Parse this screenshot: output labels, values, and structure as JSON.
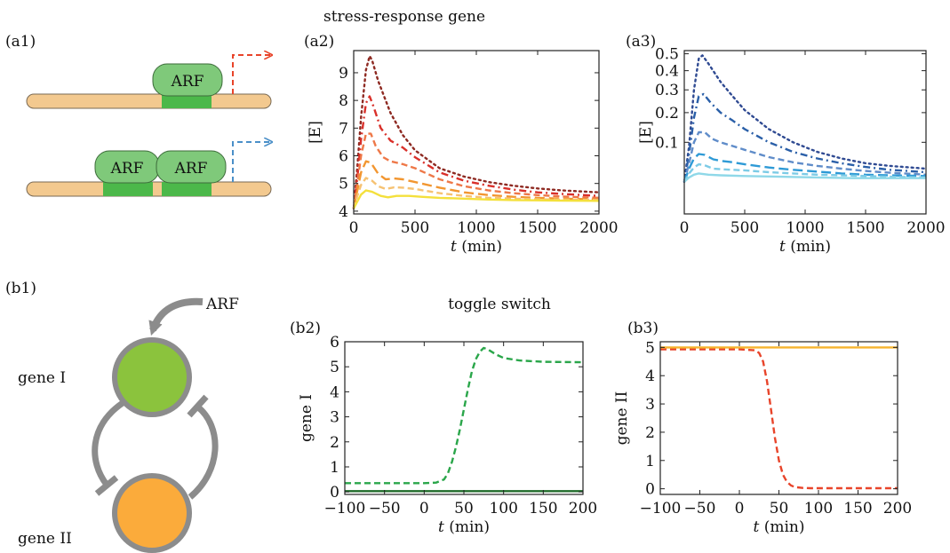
{
  "headings": {
    "top": "stress-response gene",
    "middle": "toggle switch"
  },
  "panel_labels": {
    "a1": "(a1)",
    "a2": "(a2)",
    "a3": "(a3)",
    "b1": "(b1)",
    "b2": "(b2)",
    "b3": "(b3)"
  },
  "diagram_a1": {
    "arf_label": "ARF",
    "single_arrow_color": "#e8442a",
    "double_arrow_color": "#4a8fc8",
    "dna_color": "#f3c98f",
    "site_color": "#4cb84a",
    "protein_color": "#7fc97a"
  },
  "diagram_b1": {
    "arf_label": "ARF",
    "gene1_label": "gene I",
    "gene2_label": "gene II",
    "gene1_color": "#8bc33d",
    "gene2_color": "#fbab3b",
    "ring_color": "#8c8c8c"
  },
  "chart_data": [
    {
      "id": "a2",
      "type": "line",
      "xlabel_italic": "t",
      "xlabel_unit": " (min)",
      "ylabel": "[E]",
      "xlim": [
        0,
        2000
      ],
      "ylim": [
        3.9,
        9.8
      ],
      "xticks": [
        0,
        500,
        1000,
        1500,
        2000
      ],
      "yticks": [
        4,
        5,
        6,
        7,
        8,
        9
      ],
      "series": [
        {
          "color": "#8e2a22",
          "dash": "dotted",
          "x": [
            0,
            30,
            60,
            100,
            130,
            150,
            200,
            300,
            400,
            500,
            700,
            900,
            1100,
            1300,
            1500,
            1700,
            2000
          ],
          "y": [
            4.1,
            5.6,
            7.4,
            9.1,
            9.6,
            9.45,
            8.7,
            7.55,
            6.75,
            6.2,
            5.55,
            5.25,
            5.05,
            4.92,
            4.82,
            4.75,
            4.68
          ]
        },
        {
          "color": "#d9302a",
          "dash": "dashdot",
          "x": [
            0,
            30,
            60,
            100,
            130,
            160,
            220,
            300,
            400,
            500,
            700,
            900,
            1100,
            1300,
            1500,
            1700,
            2000
          ],
          "y": [
            4.1,
            5.2,
            6.6,
            7.9,
            8.15,
            7.8,
            7.0,
            6.55,
            6.3,
            5.95,
            5.4,
            5.1,
            4.92,
            4.78,
            4.68,
            4.62,
            4.55
          ]
        },
        {
          "color": "#ee7848",
          "dash": "dashed",
          "x": [
            0,
            30,
            60,
            100,
            140,
            180,
            240,
            300,
            400,
            500,
            700,
            900,
            1100,
            1300,
            1500,
            1700,
            2000
          ],
          "y": [
            4.1,
            5.0,
            6.0,
            6.8,
            6.8,
            6.35,
            5.95,
            5.8,
            5.7,
            5.55,
            5.15,
            4.9,
            4.75,
            4.65,
            4.58,
            4.53,
            4.48
          ]
        },
        {
          "color": "#f29630",
          "dash": "longdash",
          "x": [
            0,
            30,
            60,
            100,
            140,
            200,
            260,
            330,
            400,
            500,
            700,
            900,
            1100,
            1300,
            1500,
            1700,
            2000
          ],
          "y": [
            4.1,
            4.75,
            5.4,
            5.8,
            5.75,
            5.35,
            5.15,
            5.18,
            5.15,
            5.05,
            4.85,
            4.68,
            4.58,
            4.52,
            4.48,
            4.45,
            4.42
          ]
        },
        {
          "color": "#f6c272",
          "dash": "dashed",
          "x": [
            0,
            30,
            60,
            100,
            150,
            200,
            260,
            330,
            400,
            500,
            700,
            900,
            1100,
            1300,
            1500,
            1700,
            2000
          ],
          "y": [
            4.1,
            4.55,
            4.95,
            5.2,
            5.1,
            4.9,
            4.8,
            4.86,
            4.85,
            4.8,
            4.65,
            4.55,
            4.48,
            4.45,
            4.43,
            4.42,
            4.4
          ]
        },
        {
          "color": "#f4e03c",
          "dash": "solid",
          "x": [
            0,
            30,
            60,
            100,
            150,
            220,
            280,
            350,
            450,
            550,
            700,
            900,
            1100,
            1300,
            1500,
            1700,
            2000
          ],
          "y": [
            4.1,
            4.35,
            4.6,
            4.75,
            4.7,
            4.55,
            4.5,
            4.55,
            4.55,
            4.52,
            4.48,
            4.45,
            4.42,
            4.4,
            4.39,
            4.38,
            4.37
          ]
        }
      ]
    },
    {
      "id": "a3",
      "type": "line",
      "scale": "sqrt",
      "xlabel_italic": "t",
      "xlabel_unit": " (min)",
      "ylabel": "[E]",
      "xlim": [
        0,
        2000
      ],
      "ylim": [
        0,
        0.52
      ],
      "xticks": [
        0,
        500,
        1000,
        1500,
        2000
      ],
      "yticks": [
        0.1,
        0.2,
        0.3,
        0.4,
        0.5
      ],
      "series": [
        {
          "color": "#2f4a92",
          "dash": "dotted",
          "x": [
            0,
            40,
            80,
            120,
            150,
            200,
            300,
            400,
            500,
            700,
            900,
            1100,
            1300,
            1500,
            1700,
            2000
          ],
          "y": [
            0.02,
            0.09,
            0.3,
            0.47,
            0.49,
            0.44,
            0.34,
            0.27,
            0.21,
            0.14,
            0.1,
            0.075,
            0.06,
            0.05,
            0.045,
            0.04
          ]
        },
        {
          "color": "#2a5fa8",
          "dash": "dashdot",
          "x": [
            0,
            40,
            80,
            120,
            160,
            220,
            300,
            400,
            500,
            700,
            900,
            1100,
            1300,
            1500,
            1700,
            2000
          ],
          "y": [
            0.02,
            0.07,
            0.18,
            0.27,
            0.28,
            0.24,
            0.2,
            0.17,
            0.14,
            0.1,
            0.075,
            0.06,
            0.05,
            0.043,
            0.038,
            0.034
          ]
        },
        {
          "color": "#5f8cc9",
          "dash": "dashed",
          "x": [
            0,
            40,
            80,
            120,
            170,
            230,
            300,
            400,
            500,
            700,
            900,
            1100,
            1300,
            1500,
            1700,
            2000
          ],
          "y": [
            0.02,
            0.05,
            0.1,
            0.13,
            0.13,
            0.11,
            0.1,
            0.09,
            0.08,
            0.063,
            0.052,
            0.045,
            0.04,
            0.036,
            0.033,
            0.03
          ]
        },
        {
          "color": "#2e9ad6",
          "dash": "longdash",
          "x": [
            0,
            40,
            80,
            120,
            170,
            240,
            300,
            400,
            500,
            700,
            900,
            1100,
            1300,
            1500,
            1700,
            2000
          ],
          "y": [
            0.02,
            0.04,
            0.06,
            0.07,
            0.068,
            0.058,
            0.055,
            0.052,
            0.048,
            0.042,
            0.038,
            0.035,
            0.032,
            0.03,
            0.029,
            0.028
          ]
        },
        {
          "color": "#7ccbe6",
          "dash": "dashed",
          "x": [
            0,
            40,
            80,
            120,
            170,
            240,
            300,
            400,
            500,
            700,
            900,
            1100,
            1300,
            1500,
            1700,
            2000
          ],
          "y": [
            0.02,
            0.032,
            0.042,
            0.048,
            0.046,
            0.04,
            0.039,
            0.038,
            0.037,
            0.034,
            0.032,
            0.03,
            0.029,
            0.028,
            0.027,
            0.026
          ]
        },
        {
          "color": "#8fd8e8",
          "dash": "solid",
          "x": [
            0,
            40,
            80,
            120,
            200,
            300,
            500,
            800,
            1100,
            1400,
            1700,
            2000
          ],
          "y": [
            0.02,
            0.026,
            0.03,
            0.032,
            0.03,
            0.029,
            0.028,
            0.027,
            0.026,
            0.025,
            0.025,
            0.025
          ]
        }
      ]
    },
    {
      "id": "b2",
      "type": "line",
      "xlabel_italic": "t",
      "xlabel_unit": " (min)",
      "ylabel": "gene I",
      "xlim": [
        -100,
        200
      ],
      "ylim": [
        -0.1,
        6
      ],
      "xticks": [
        -100,
        -50,
        0,
        50,
        100,
        150,
        200
      ],
      "yticks": [
        0,
        1,
        2,
        3,
        4,
        5,
        6
      ],
      "series": [
        {
          "color": "#2aa64a",
          "dash": "dashed",
          "x": [
            -100,
            -50,
            0,
            15,
            25,
            30,
            35,
            40,
            45,
            50,
            55,
            60,
            65,
            70,
            75,
            80,
            90,
            100,
            120,
            150,
            200
          ],
          "y": [
            0.35,
            0.35,
            0.35,
            0.37,
            0.5,
            0.75,
            1.2,
            1.8,
            2.5,
            3.3,
            4.1,
            4.8,
            5.3,
            5.6,
            5.75,
            5.7,
            5.5,
            5.35,
            5.25,
            5.2,
            5.18
          ]
        },
        {
          "color": "#1f6b2a",
          "dash": "solid",
          "x": [
            -100,
            200
          ],
          "y": [
            0.03,
            0.03
          ]
        }
      ]
    },
    {
      "id": "b3",
      "type": "line",
      "xlabel_italic": "t",
      "xlabel_unit": " (min)",
      "ylabel": "gene II",
      "xlim": [
        -100,
        200
      ],
      "ylim": [
        -0.2,
        5.2
      ],
      "xticks": [
        -100,
        -50,
        0,
        50,
        100,
        150,
        200
      ],
      "yticks": [
        0,
        1,
        2,
        3,
        4,
        5
      ],
      "series": [
        {
          "color": "#e8442a",
          "dash": "dashed",
          "x": [
            -100,
            -50,
            0,
            20,
            25,
            30,
            35,
            40,
            45,
            50,
            55,
            60,
            65,
            70,
            80,
            90,
            100,
            150,
            200
          ],
          "y": [
            4.93,
            4.93,
            4.93,
            4.9,
            4.8,
            4.5,
            3.8,
            2.8,
            1.8,
            1.0,
            0.5,
            0.25,
            0.12,
            0.06,
            0.03,
            0.02,
            0.02,
            0.02,
            0.02
          ]
        },
        {
          "color": "#f6b32d",
          "dash": "solid",
          "x": [
            -100,
            200
          ],
          "y": [
            5.0,
            5.0
          ]
        }
      ]
    }
  ]
}
